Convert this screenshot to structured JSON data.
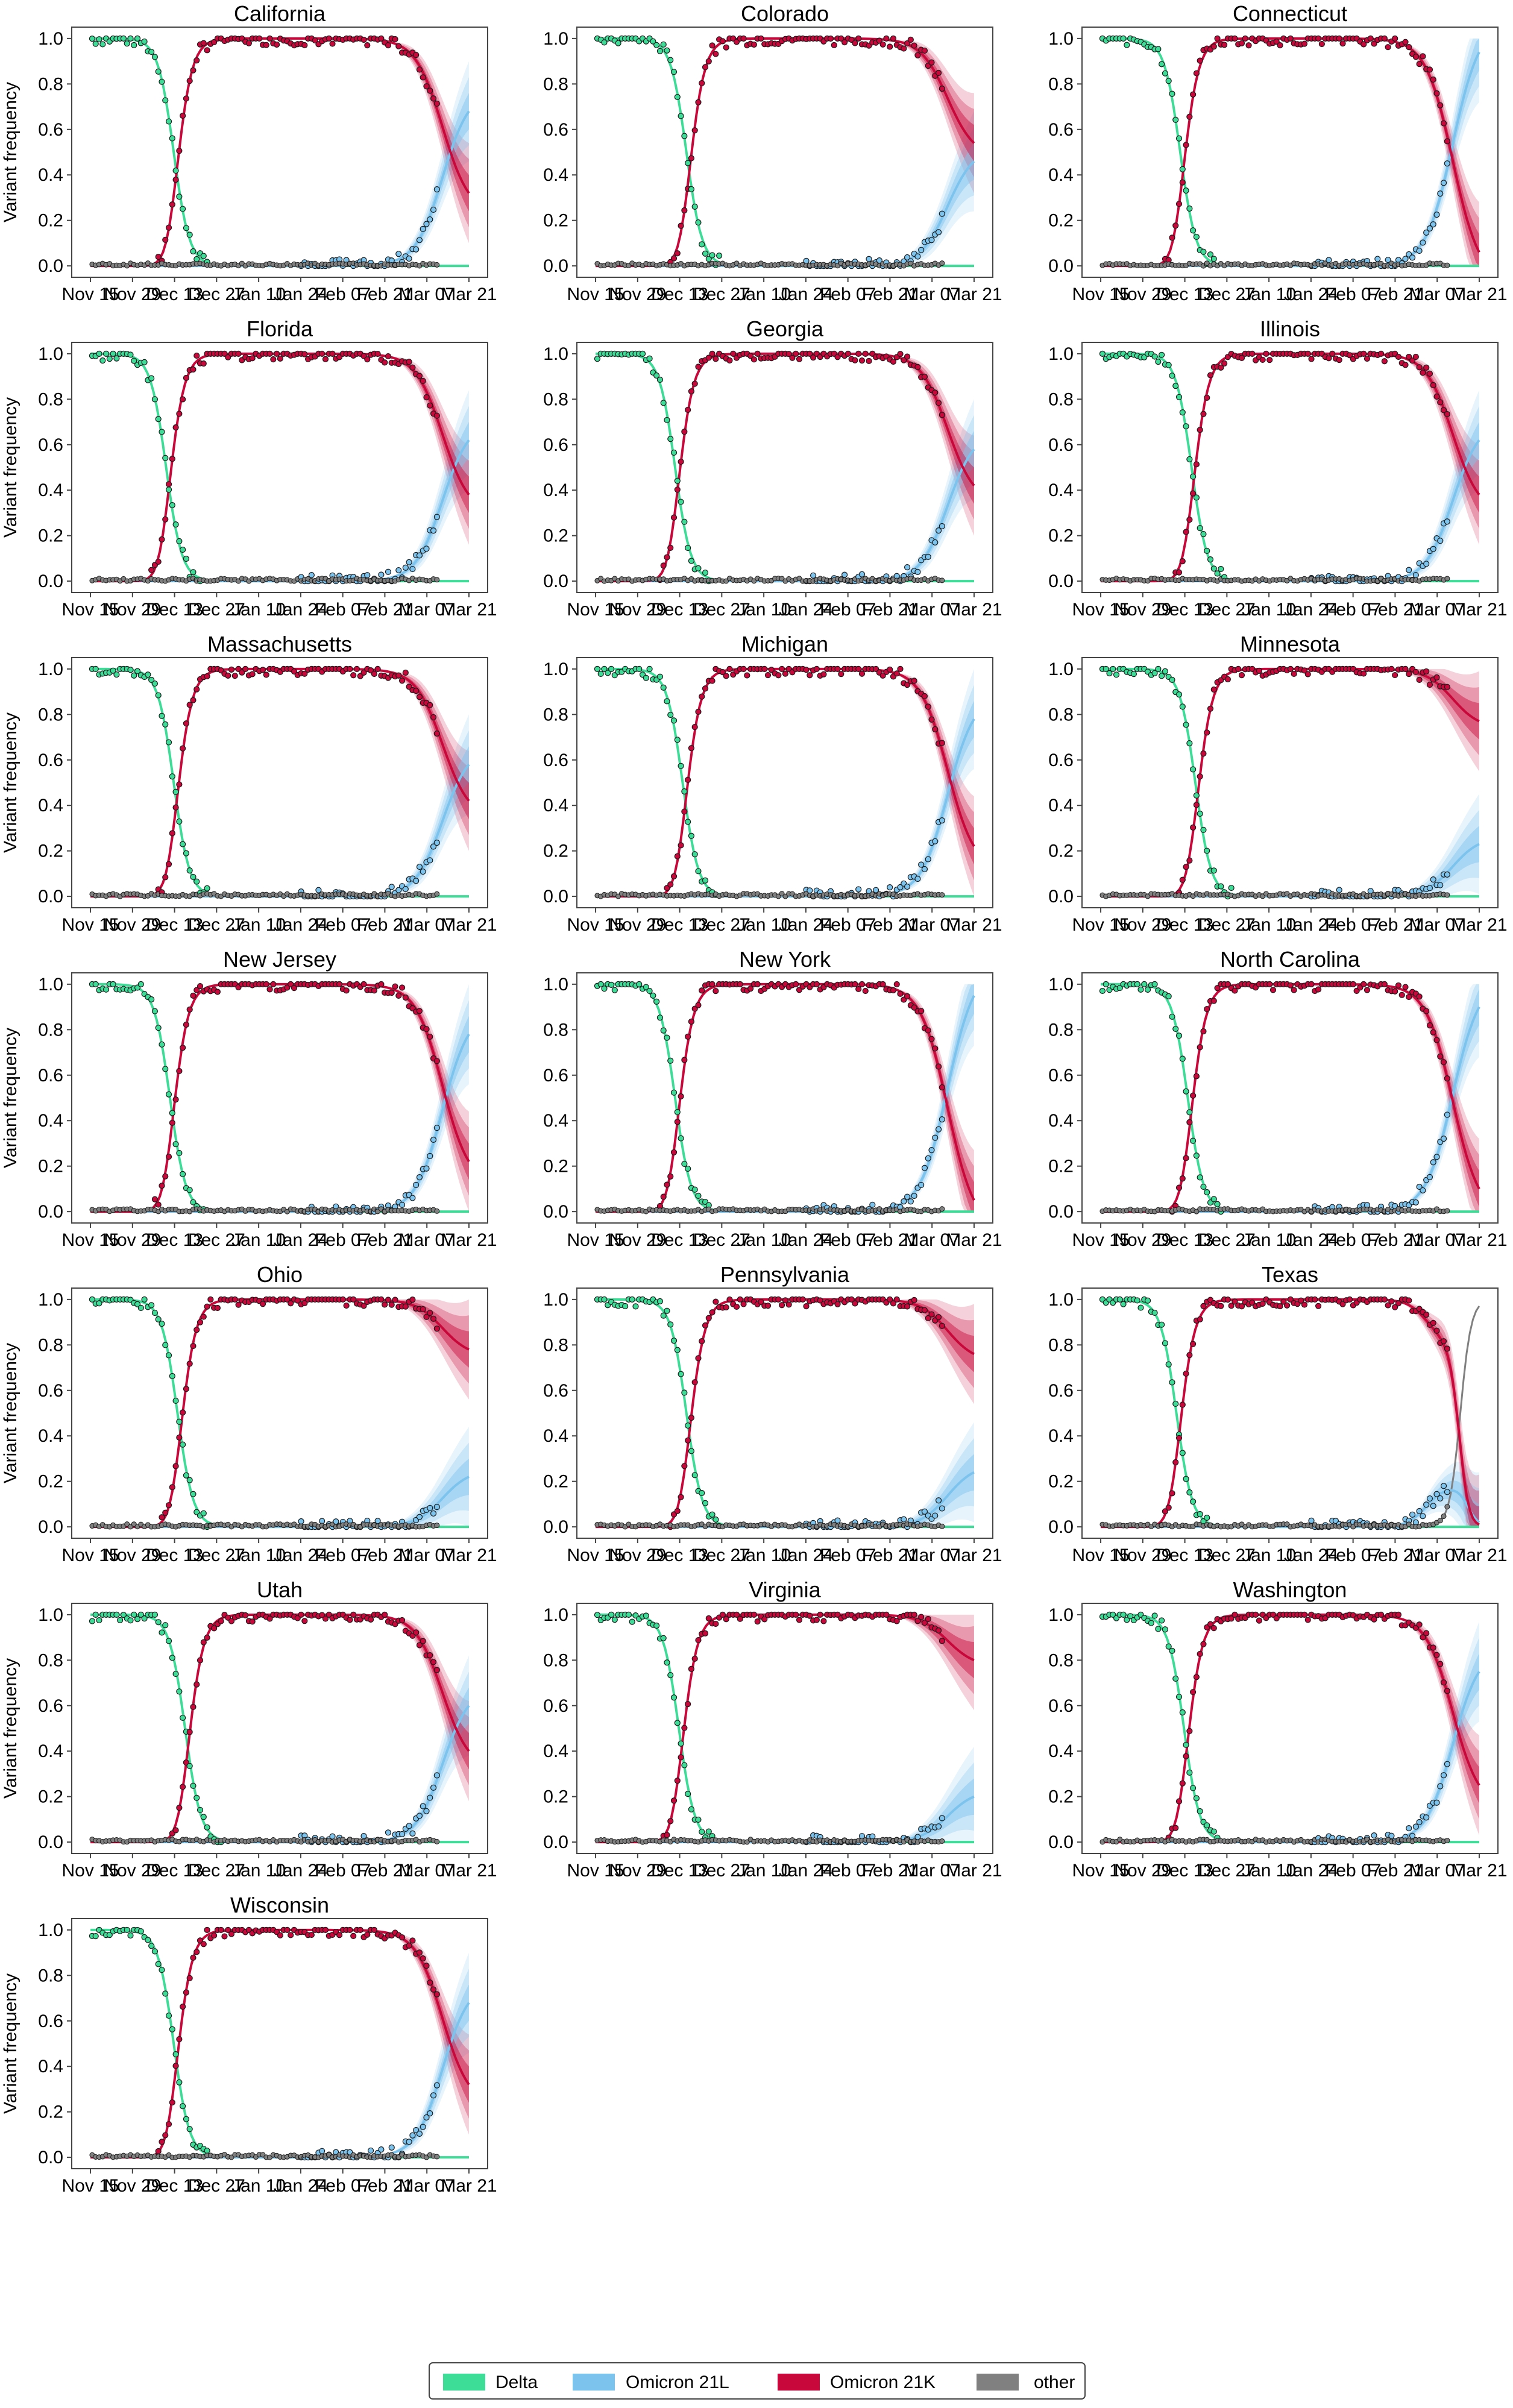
{
  "chart_data": {
    "type": "line",
    "ylabel": "Variant frequency",
    "ylim": [
      0,
      1
    ],
    "y_ticks": [
      "0.0",
      "0.2",
      "0.4",
      "0.6",
      "0.8",
      "1.0"
    ],
    "x_ticks": [
      "Nov 15",
      "Nov 29",
      "Dec 13",
      "Dec 27",
      "Jan 10",
      "Jan 24",
      "Feb 07",
      "Feb 21",
      "Mar 07",
      "Mar 21"
    ],
    "legend": {
      "placement": "bottom-center",
      "entries": [
        {
          "name": "Delta",
          "color": "#3ddc97"
        },
        {
          "name": "Omicron 21L",
          "color": "#7cc3ee"
        },
        {
          "name": "Omicron 21K",
          "color": "#c8083a"
        },
        {
          "name": "other",
          "color": "#808080"
        }
      ]
    },
    "panels": [
      {
        "title": "California",
        "delta_mid": 0.22,
        "k_mid": 0.21,
        "k_end": 0.32,
        "l_end": 0.68,
        "other_end": 0.0
      },
      {
        "title": "Colorado",
        "delta_mid": 0.24,
        "k_mid": 0.23,
        "k_end": 0.54,
        "l_end": 0.46,
        "other_end": 0.0
      },
      {
        "title": "Connecticut",
        "delta_mid": 0.21,
        "k_mid": 0.2,
        "k_end": 0.06,
        "l_end": 0.94,
        "other_end": 0.0
      },
      {
        "title": "Florida",
        "delta_mid": 0.2,
        "k_mid": 0.19,
        "k_end": 0.38,
        "l_end": 0.62,
        "other_end": 0.0
      },
      {
        "title": "Georgia",
        "delta_mid": 0.21,
        "k_mid": 0.2,
        "k_end": 0.42,
        "l_end": 0.58,
        "other_end": 0.0
      },
      {
        "title": "Illinois",
        "delta_mid": 0.24,
        "k_mid": 0.22,
        "k_end": 0.38,
        "l_end": 0.62,
        "other_end": 0.0
      },
      {
        "title": "Massachusetts",
        "delta_mid": 0.22,
        "k_mid": 0.21,
        "k_end": 0.42,
        "l_end": 0.58,
        "other_end": 0.0
      },
      {
        "title": "Michigan",
        "delta_mid": 0.23,
        "k_mid": 0.22,
        "k_end": 0.22,
        "l_end": 0.78,
        "other_end": 0.0
      },
      {
        "title": "Minnesota",
        "delta_mid": 0.25,
        "k_mid": 0.23,
        "k_end": 0.77,
        "l_end": 0.23,
        "other_end": 0.0
      },
      {
        "title": "New Jersey",
        "delta_mid": 0.21,
        "k_mid": 0.2,
        "k_end": 0.22,
        "l_end": 0.78,
        "other_end": 0.0
      },
      {
        "title": "New York",
        "delta_mid": 0.21,
        "k_mid": 0.2,
        "k_end": 0.05,
        "l_end": 0.95,
        "other_end": 0.0
      },
      {
        "title": "North Carolina",
        "delta_mid": 0.23,
        "k_mid": 0.22,
        "k_end": 0.1,
        "l_end": 0.9,
        "other_end": 0.0
      },
      {
        "title": "Ohio",
        "delta_mid": 0.23,
        "k_mid": 0.22,
        "k_end": 0.78,
        "l_end": 0.22,
        "other_end": 0.0
      },
      {
        "title": "Pennsylvania",
        "delta_mid": 0.24,
        "k_mid": 0.23,
        "k_end": 0.76,
        "l_end": 0.24,
        "other_end": 0.0
      },
      {
        "title": "Texas",
        "delta_mid": 0.2,
        "k_mid": 0.19,
        "k_end": 0.0,
        "l_end": 0.0,
        "other_end": 1.0
      },
      {
        "title": "Utah",
        "delta_mid": 0.25,
        "k_mid": 0.24,
        "k_end": 0.4,
        "l_end": 0.6,
        "other_end": 0.0
      },
      {
        "title": "Virginia",
        "delta_mid": 0.22,
        "k_mid": 0.21,
        "k_end": 0.8,
        "l_end": 0.2,
        "other_end": 0.0
      },
      {
        "title": "Washington",
        "delta_mid": 0.22,
        "k_mid": 0.21,
        "k_end": 0.25,
        "l_end": 0.75,
        "other_end": 0.0
      },
      {
        "title": "Wisconsin",
        "delta_mid": 0.22,
        "k_mid": 0.21,
        "k_end": 0.32,
        "l_end": 0.68,
        "other_end": 0.0
      }
    ]
  }
}
